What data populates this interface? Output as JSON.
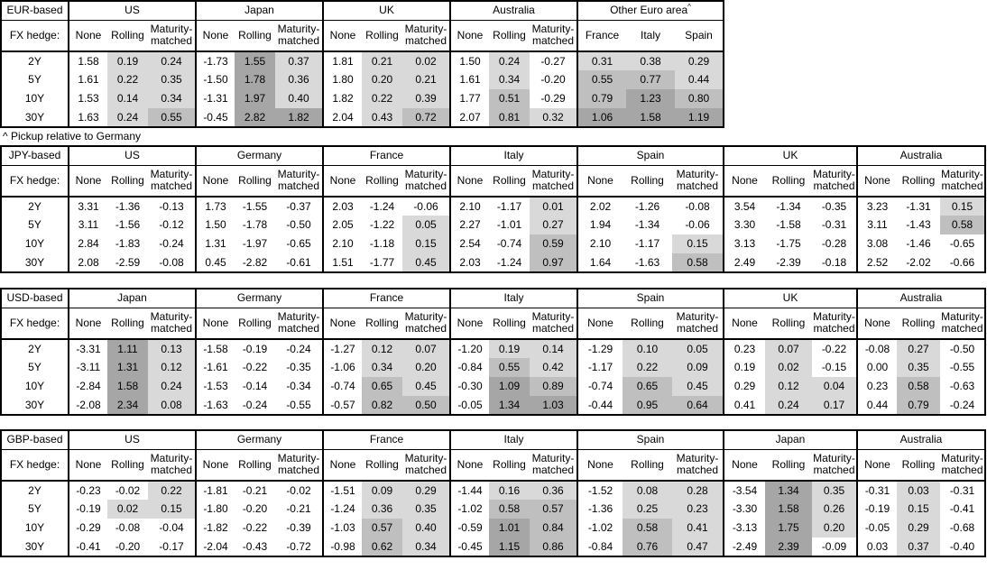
{
  "page": {
    "footnote": "^ Pickup relative to Germany",
    "fx_hedge_label": "FX hedge:",
    "row_labels": [
      "2Y",
      "5Y",
      "10Y",
      "30Y"
    ],
    "standard_headers": [
      "None",
      "Rolling",
      "Maturity-matched"
    ]
  },
  "heatmap": {
    "light": "#d9d9d9",
    "medium": "#bfbfbf",
    "dark": "#a6a6a6",
    "rule": "shaded columns only: value 0 to 0.5 light, 0.5 to 1.0 medium, 1.0+ dark, negative unshaded"
  },
  "tables": [
    {
      "id": "eur",
      "base": "EUR-based",
      "groups": [
        {
          "name": "US",
          "headers": [
            "None",
            "Rolling",
            "Maturity-matched"
          ],
          "shaded": [
            false,
            true,
            true
          ],
          "rows": [
            [
              "1.58",
              "0.19",
              "0.24"
            ],
            [
              "1.61",
              "0.22",
              "0.35"
            ],
            [
              "1.53",
              "0.14",
              "0.34"
            ],
            [
              "1.63",
              "0.24",
              "0.55"
            ]
          ]
        },
        {
          "name": "Japan",
          "headers": [
            "None",
            "Rolling",
            "Maturity-matched"
          ],
          "shaded": [
            false,
            true,
            true
          ],
          "rows": [
            [
              "-1.73",
              "1.55",
              "0.37"
            ],
            [
              "-1.50",
              "1.78",
              "0.36"
            ],
            [
              "-1.31",
              "1.97",
              "0.40"
            ],
            [
              "-0.45",
              "2.82",
              "1.82"
            ]
          ]
        },
        {
          "name": "UK",
          "headers": [
            "None",
            "Rolling",
            "Maturity-matched"
          ],
          "shaded": [
            false,
            true,
            true
          ],
          "rows": [
            [
              "1.81",
              "0.21",
              "0.02"
            ],
            [
              "1.80",
              "0.20",
              "0.21"
            ],
            [
              "1.82",
              "0.22",
              "0.39"
            ],
            [
              "2.04",
              "0.43",
              "0.72"
            ]
          ]
        },
        {
          "name": "Australia",
          "headers": [
            "None",
            "Rolling",
            "Maturity-matched"
          ],
          "shaded": [
            false,
            true,
            true
          ],
          "rows": [
            [
              "1.50",
              "0.24",
              "-0.27"
            ],
            [
              "1.61",
              "0.34",
              "-0.20"
            ],
            [
              "1.77",
              "0.51",
              "-0.29"
            ],
            [
              "2.07",
              "0.81",
              "0.32"
            ]
          ]
        },
        {
          "name": "Other Euro area",
          "sup": "^",
          "headers": [
            "France",
            "Italy",
            "Spain"
          ],
          "shaded": [
            true,
            true,
            true
          ],
          "rows": [
            [
              "0.31",
              "0.38",
              "0.29"
            ],
            [
              "0.55",
              "0.77",
              "0.44"
            ],
            [
              "0.79",
              "1.23",
              "0.80"
            ],
            [
              "1.06",
              "1.58",
              "1.19"
            ]
          ]
        }
      ]
    },
    {
      "id": "jpy",
      "base": "JPY-based",
      "groups": [
        {
          "name": "US",
          "headers": [
            "None",
            "Rolling",
            "Maturity-matched"
          ],
          "shaded": [
            false,
            true,
            true
          ],
          "rows": [
            [
              "3.31",
              "-1.36",
              "-0.13"
            ],
            [
              "3.11",
              "-1.56",
              "-0.12"
            ],
            [
              "2.84",
              "-1.83",
              "-0.24"
            ],
            [
              "2.08",
              "-2.59",
              "-0.08"
            ]
          ]
        },
        {
          "name": "Germany",
          "headers": [
            "None",
            "Rolling",
            "Maturity-matched"
          ],
          "shaded": [
            false,
            true,
            true
          ],
          "rows": [
            [
              "1.73",
              "-1.55",
              "-0.37"
            ],
            [
              "1.50",
              "-1.78",
              "-0.50"
            ],
            [
              "1.31",
              "-1.97",
              "-0.65"
            ],
            [
              "0.45",
              "-2.82",
              "-0.61"
            ]
          ]
        },
        {
          "name": "France",
          "headers": [
            "None",
            "Rolling",
            "Maturity-matched"
          ],
          "shaded": [
            false,
            true,
            true
          ],
          "rows": [
            [
              "2.03",
              "-1.24",
              "-0.06"
            ],
            [
              "2.05",
              "-1.22",
              "0.05"
            ],
            [
              "2.10",
              "-1.18",
              "0.15"
            ],
            [
              "1.51",
              "-1.77",
              "0.45"
            ]
          ]
        },
        {
          "name": "Italy",
          "headers": [
            "None",
            "Rolling",
            "Maturity-matched"
          ],
          "shaded": [
            false,
            true,
            true
          ],
          "rows": [
            [
              "2.10",
              "-1.17",
              "0.01"
            ],
            [
              "2.27",
              "-1.01",
              "0.27"
            ],
            [
              "2.54",
              "-0.74",
              "0.59"
            ],
            [
              "2.03",
              "-1.24",
              "0.97"
            ]
          ]
        },
        {
          "name": "Spain",
          "headers": [
            "None",
            "Rolling",
            "Maturity-matched"
          ],
          "shaded": [
            false,
            true,
            true
          ],
          "rows": [
            [
              "2.02",
              "-1.26",
              "-0.08"
            ],
            [
              "1.94",
              "-1.34",
              "-0.06"
            ],
            [
              "2.10",
              "-1.17",
              "0.15"
            ],
            [
              "1.64",
              "-1.63",
              "0.58"
            ]
          ]
        },
        {
          "name": "UK",
          "headers": [
            "None",
            "Rolling",
            "Maturity-matched"
          ],
          "shaded": [
            false,
            true,
            true
          ],
          "rows": [
            [
              "3.54",
              "-1.34",
              "-0.35"
            ],
            [
              "3.30",
              "-1.58",
              "-0.31"
            ],
            [
              "3.13",
              "-1.75",
              "-0.28"
            ],
            [
              "2.49",
              "-2.39",
              "-0.18"
            ]
          ]
        },
        {
          "name": "Australia",
          "headers": [
            "None",
            "Rolling",
            "Maturity-matched"
          ],
          "shaded": [
            false,
            true,
            true
          ],
          "rows": [
            [
              "3.23",
              "-1.31",
              "0.15"
            ],
            [
              "3.11",
              "-1.43",
              "0.58"
            ],
            [
              "3.08",
              "-1.46",
              "-0.65"
            ],
            [
              "2.52",
              "-2.02",
              "-0.66"
            ]
          ]
        }
      ]
    },
    {
      "id": "usd",
      "base": "USD-based",
      "groups": [
        {
          "name": "Japan",
          "headers": [
            "None",
            "Rolling",
            "Maturity-matched"
          ],
          "shaded": [
            false,
            true,
            true
          ],
          "rows": [
            [
              "-3.31",
              "1.11",
              "0.13"
            ],
            [
              "-3.11",
              "1.31",
              "0.12"
            ],
            [
              "-2.84",
              "1.58",
              "0.24"
            ],
            [
              "-2.08",
              "2.34",
              "0.08"
            ]
          ]
        },
        {
          "name": "Germany",
          "headers": [
            "None",
            "Rolling",
            "Maturity-matched"
          ],
          "shaded": [
            false,
            true,
            true
          ],
          "rows": [
            [
              "-1.58",
              "-0.19",
              "-0.24"
            ],
            [
              "-1.61",
              "-0.22",
              "-0.35"
            ],
            [
              "-1.53",
              "-0.14",
              "-0.34"
            ],
            [
              "-1.63",
              "-0.24",
              "-0.55"
            ]
          ]
        },
        {
          "name": "France",
          "headers": [
            "None",
            "Rolling",
            "Maturity-matched"
          ],
          "shaded": [
            false,
            true,
            true
          ],
          "rows": [
            [
              "-1.27",
              "0.12",
              "0.07"
            ],
            [
              "-1.06",
              "0.34",
              "0.20"
            ],
            [
              "-0.74",
              "0.65",
              "0.45"
            ],
            [
              "-0.57",
              "0.82",
              "0.50"
            ]
          ]
        },
        {
          "name": "Italy",
          "headers": [
            "None",
            "Rolling",
            "Maturity-matched"
          ],
          "shaded": [
            false,
            true,
            true
          ],
          "rows": [
            [
              "-1.20",
              "0.19",
              "0.14"
            ],
            [
              "-0.84",
              "0.55",
              "0.42"
            ],
            [
              "-0.30",
              "1.09",
              "0.89"
            ],
            [
              "-0.05",
              "1.34",
              "1.03"
            ]
          ]
        },
        {
          "name": "Spain",
          "headers": [
            "None",
            "Rolling",
            "Maturity-matched"
          ],
          "shaded": [
            false,
            true,
            true
          ],
          "rows": [
            [
              "-1.29",
              "0.10",
              "0.05"
            ],
            [
              "-1.17",
              "0.22",
              "0.09"
            ],
            [
              "-0.74",
              "0.65",
              "0.45"
            ],
            [
              "-0.44",
              "0.95",
              "0.64"
            ]
          ]
        },
        {
          "name": "UK",
          "headers": [
            "None",
            "Rolling",
            "Maturity-matched"
          ],
          "shaded": [
            false,
            true,
            true
          ],
          "rows": [
            [
              "0.23",
              "0.07",
              "-0.22"
            ],
            [
              "0.19",
              "0.02",
              "-0.15"
            ],
            [
              "0.29",
              "0.12",
              "0.04"
            ],
            [
              "0.41",
              "0.24",
              "0.17"
            ]
          ]
        },
        {
          "name": "Australia",
          "headers": [
            "None",
            "Rolling",
            "Maturity-matched"
          ],
          "shaded": [
            false,
            true,
            true
          ],
          "rows": [
            [
              "-0.08",
              "0.27",
              "-0.50"
            ],
            [
              "0.00",
              "0.35",
              "-0.55"
            ],
            [
              "0.23",
              "0.58",
              "-0.63"
            ],
            [
              "0.44",
              "0.79",
              "-0.24"
            ]
          ]
        }
      ]
    },
    {
      "id": "gbp",
      "base": "GBP-based",
      "groups": [
        {
          "name": "US",
          "headers": [
            "None",
            "Rolling",
            "Maturity-matched"
          ],
          "shaded": [
            false,
            true,
            true
          ],
          "rows": [
            [
              "-0.23",
              "-0.02",
              "0.22"
            ],
            [
              "-0.19",
              "0.02",
              "0.15"
            ],
            [
              "-0.29",
              "-0.08",
              "-0.04"
            ],
            [
              "-0.41",
              "-0.20",
              "-0.17"
            ]
          ]
        },
        {
          "name": "Germany",
          "headers": [
            "None",
            "Rolling",
            "Maturity-matched"
          ],
          "shaded": [
            false,
            true,
            true
          ],
          "rows": [
            [
              "-1.81",
              "-0.21",
              "-0.02"
            ],
            [
              "-1.80",
              "-0.20",
              "-0.21"
            ],
            [
              "-1.82",
              "-0.22",
              "-0.39"
            ],
            [
              "-2.04",
              "-0.43",
              "-0.72"
            ]
          ]
        },
        {
          "name": "France",
          "headers": [
            "None",
            "Rolling",
            "Maturity-matched"
          ],
          "shaded": [
            false,
            true,
            true
          ],
          "rows": [
            [
              "-1.51",
              "0.09",
              "0.29"
            ],
            [
              "-1.24",
              "0.36",
              "0.35"
            ],
            [
              "-1.03",
              "0.57",
              "0.40"
            ],
            [
              "-0.98",
              "0.62",
              "0.34"
            ]
          ]
        },
        {
          "name": "Italy",
          "headers": [
            "None",
            "Rolling",
            "Maturity-matched"
          ],
          "shaded": [
            false,
            true,
            true
          ],
          "rows": [
            [
              "-1.44",
              "0.16",
              "0.36"
            ],
            [
              "-1.02",
              "0.58",
              "0.57"
            ],
            [
              "-0.59",
              "1.01",
              "0.84"
            ],
            [
              "-0.45",
              "1.15",
              "0.86"
            ]
          ]
        },
        {
          "name": "Spain",
          "headers": [
            "None",
            "Rolling",
            "Maturity-matched"
          ],
          "shaded": [
            false,
            true,
            true
          ],
          "rows": [
            [
              "-1.52",
              "0.08",
              "0.28"
            ],
            [
              "-1.36",
              "0.25",
              "0.23"
            ],
            [
              "-1.02",
              "0.58",
              "0.41"
            ],
            [
              "-0.84",
              "0.76",
              "0.47"
            ]
          ]
        },
        {
          "name": "Japan",
          "headers": [
            "None",
            "Rolling",
            "Maturity-matched"
          ],
          "shaded": [
            false,
            true,
            true
          ],
          "rows": [
            [
              "-3.54",
              "1.34",
              "0.35"
            ],
            [
              "-3.30",
              "1.58",
              "0.26"
            ],
            [
              "-3.13",
              "1.75",
              "0.20"
            ],
            [
              "-2.49",
              "2.39",
              "-0.09"
            ]
          ]
        },
        {
          "name": "Australia",
          "headers": [
            "None",
            "Rolling",
            "Maturity-matched"
          ],
          "shaded": [
            false,
            true,
            true
          ],
          "rows": [
            [
              "-0.31",
              "0.03",
              "-0.31"
            ],
            [
              "-0.19",
              "0.15",
              "-0.41"
            ],
            [
              "-0.05",
              "0.29",
              "-0.68"
            ],
            [
              "0.03",
              "0.37",
              "-0.40"
            ]
          ]
        }
      ]
    }
  ]
}
